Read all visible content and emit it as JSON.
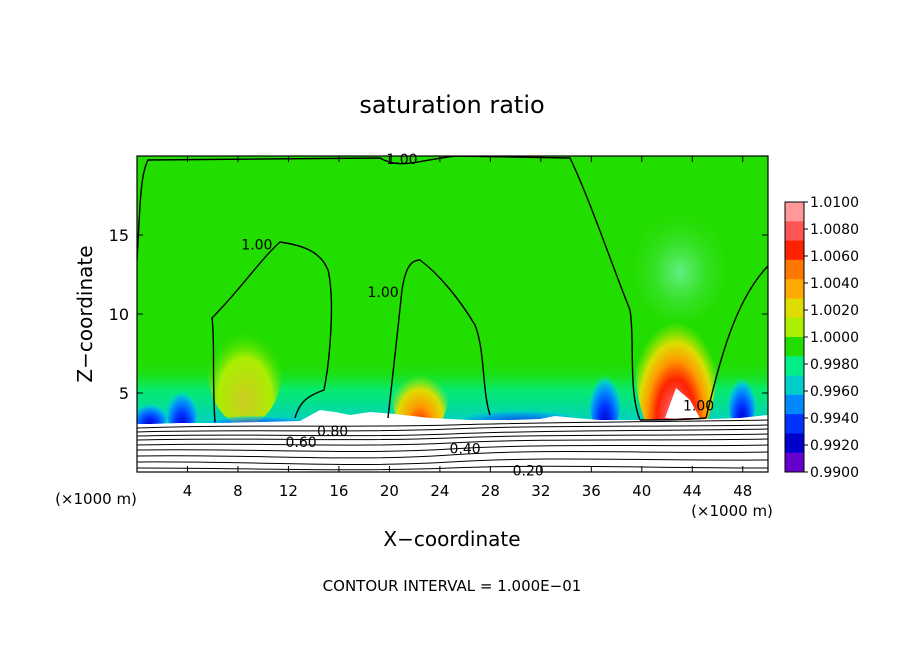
{
  "chart_data": {
    "type": "heatmap",
    "title": "saturation ratio",
    "xlabel": "X−coordinate",
    "ylabel": "Z−coordinate",
    "x_units_left": "(×1000 m)",
    "x_units_right": "(×1000 m)",
    "xlim": [
      0,
      50
    ],
    "ylim": [
      0,
      20
    ],
    "x_ticks": [
      4,
      8,
      12,
      16,
      20,
      24,
      28,
      32,
      36,
      40,
      44,
      48
    ],
    "y_ticks": [
      5,
      10,
      15
    ],
    "footer": "CONTOUR INTERVAL =  1.000E−01",
    "colorbar": {
      "levels": [
        "1.0100",
        "1.0080",
        "1.0060",
        "1.0040",
        "1.0020",
        "1.0000",
        "0.9980",
        "0.9960",
        "0.9940",
        "0.9920",
        "0.9900"
      ],
      "colors": [
        "#ff9999",
        "#ff5555",
        "#ff2200",
        "#ff7700",
        "#ffaa00",
        "#dddd00",
        "#aaee00",
        "#22dd00",
        "#00ee88",
        "#00cccc",
        "#0088ff",
        "#0033ff",
        "#0000cc",
        "#6600cc"
      ]
    },
    "contour_labels": [
      {
        "text": "1.00",
        "x": 21,
        "y": 19.8
      },
      {
        "text": "1.00",
        "x": 9.5,
        "y": 14.4
      },
      {
        "text": "1.00",
        "x": 19.5,
        "y": 11.4
      },
      {
        "text": "1.00",
        "x": 44.5,
        "y": 4.2
      },
      {
        "text": "0.80",
        "x": 15.5,
        "y": 2.6
      },
      {
        "text": "0.60",
        "x": 13,
        "y": 1.9
      },
      {
        "text": "0.40",
        "x": 26,
        "y": 1.5
      },
      {
        "text": "0.20",
        "x": 31,
        "y": 0.1
      }
    ]
  }
}
